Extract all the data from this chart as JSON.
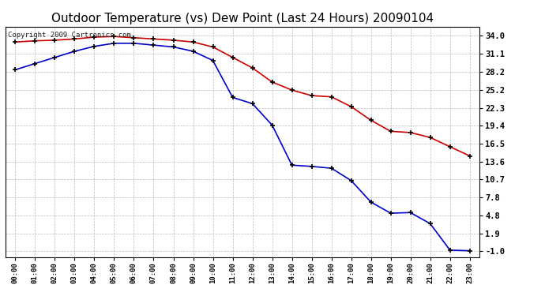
{
  "title": "Outdoor Temperature (vs) Dew Point (Last 24 Hours) 20090104",
  "copyright": "Copyright 2009 Cartronics.com",
  "x_labels": [
    "00:00",
    "01:00",
    "02:00",
    "03:00",
    "04:00",
    "05:00",
    "06:00",
    "07:00",
    "08:00",
    "09:00",
    "10:00",
    "11:00",
    "12:00",
    "13:00",
    "14:00",
    "15:00",
    "16:00",
    "17:00",
    "18:00",
    "19:00",
    "20:00",
    "21:00",
    "22:00",
    "23:00"
  ],
  "temp_values": [
    33.0,
    33.2,
    33.3,
    33.5,
    33.8,
    33.9,
    33.7,
    33.5,
    33.3,
    33.0,
    32.2,
    30.5,
    28.8,
    26.5,
    25.2,
    24.3,
    24.1,
    22.5,
    20.3,
    18.5,
    18.3,
    17.5,
    16.0,
    14.5
  ],
  "dew_values": [
    28.5,
    29.5,
    30.5,
    31.5,
    32.3,
    32.8,
    32.8,
    32.5,
    32.2,
    31.5,
    30.0,
    24.0,
    23.0,
    19.5,
    13.0,
    12.8,
    12.5,
    10.5,
    7.0,
    5.2,
    5.3,
    3.5,
    -0.8,
    -0.9
  ],
  "y_ticks": [
    34.0,
    31.1,
    28.2,
    25.2,
    22.3,
    19.4,
    16.5,
    13.6,
    10.7,
    7.8,
    4.8,
    1.9,
    -1.0
  ],
  "ylim": [
    -2.0,
    35.5
  ],
  "temp_color": "#cc0000",
  "dew_color": "#0000cc",
  "grid_color": "#bbbbbb",
  "bg_color": "#ffffff",
  "title_fontsize": 11,
  "copyright_fontsize": 6.5
}
